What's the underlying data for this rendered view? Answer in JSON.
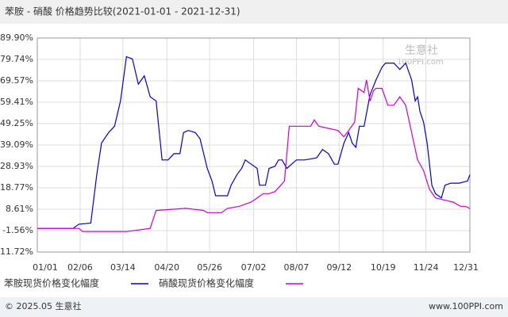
{
  "chart_data": {
    "type": "line",
    "title": "苯胺 - 硝酸 价格趋势比较(2021-01-01 - 2021-12-31)",
    "watermark": "生意社",
    "watermark_sub": "100PPI.com",
    "footer_left": "© 2025.05 生意社",
    "footer_right": "www.100PPI.com",
    "xlim": [
      0,
      364
    ],
    "xticks": [
      {
        "value": 0,
        "label": "01/01"
      },
      {
        "value": 36,
        "label": "02/06"
      },
      {
        "value": 72,
        "label": "03/14"
      },
      {
        "value": 109,
        "label": "04/20"
      },
      {
        "value": 145,
        "label": "05/26"
      },
      {
        "value": 182,
        "label": "07/02"
      },
      {
        "value": 218,
        "label": "08/07"
      },
      {
        "value": 254,
        "label": "09/12"
      },
      {
        "value": 291,
        "label": "10/19"
      },
      {
        "value": 327,
        "label": "11/24"
      },
      {
        "value": 364,
        "label": "12/31"
      }
    ],
    "ylim": [
      -11.72,
      89.9
    ],
    "yticks": [
      {
        "value": 89.9,
        "label": "89.90%"
      },
      {
        "value": 79.74,
        "label": "79.74%"
      },
      {
        "value": 69.57,
        "label": "69.57%"
      },
      {
        "value": 59.41,
        "label": "59.41%"
      },
      {
        "value": 49.25,
        "label": "49.25%"
      },
      {
        "value": 39.09,
        "label": "39.09%"
      },
      {
        "value": 28.93,
        "label": "28.93%"
      },
      {
        "value": 18.77,
        "label": "18.77%"
      },
      {
        "value": 8.61,
        "label": "8.61%"
      },
      {
        "value": -1.56,
        "label": "-1.56%"
      },
      {
        "value": -11.72,
        "label": "-11.72%"
      }
    ],
    "grid": true,
    "series": [
      {
        "name": "苯胺现货价格变化幅度",
        "color": "#0000cc",
        "x": [
          0,
          30,
          35,
          45,
          50,
          54,
          60,
          65,
          70,
          75,
          80,
          85,
          90,
          95,
          100,
          105,
          110,
          115,
          120,
          123,
          127,
          133,
          137,
          140,
          143,
          147,
          150,
          155,
          160,
          163,
          168,
          172,
          175,
          180,
          185,
          187,
          192,
          195,
          200,
          203,
          206,
          210,
          218,
          225,
          235,
          240,
          245,
          250,
          253,
          258,
          262,
          265,
          268,
          271,
          275,
          280,
          285,
          290,
          293,
          300,
          305,
          310,
          315,
          318,
          320,
          322,
          325,
          328,
          332,
          335,
          340,
          343,
          348,
          355,
          362,
          364
        ],
        "values": [
          -0.5,
          -0.5,
          1.5,
          2,
          25,
          40,
          45,
          48,
          60,
          81,
          80,
          68,
          72,
          62,
          60,
          32,
          32,
          35,
          35,
          45,
          46,
          45,
          42,
          35,
          28,
          22,
          15,
          15,
          15,
          20,
          25,
          28,
          32,
          30,
          28,
          20,
          20,
          28,
          29,
          32,
          32,
          28,
          32,
          32,
          33,
          37,
          35,
          30,
          30,
          40,
          45,
          40,
          38,
          48,
          48,
          63,
          70,
          76,
          78,
          78,
          75,
          78,
          70,
          60,
          62,
          55,
          50,
          40,
          20,
          16,
          14,
          20,
          21,
          21,
          22,
          25
        ]
      },
      {
        "name": "硝酸现货价格变化幅度",
        "color": "#cc00cc",
        "x": [
          0,
          35,
          38,
          75,
          95,
          100,
          125,
          140,
          143,
          155,
          160,
          170,
          180,
          185,
          190,
          195,
          200,
          205,
          208,
          212,
          230,
          233,
          237,
          245,
          253,
          258,
          262,
          267,
          270,
          275,
          277,
          280,
          283,
          285,
          290,
          295,
          300,
          305,
          310,
          315,
          320,
          325,
          330,
          335,
          342,
          350,
          356,
          360,
          364
        ],
        "values": [
          -0.5,
          -0.5,
          -2,
          -2,
          -0.5,
          8,
          9,
          8,
          7,
          7,
          9,
          10,
          12,
          14,
          16,
          16,
          17,
          20,
          22,
          48,
          48,
          51,
          48,
          47,
          46,
          43,
          46,
          50,
          66,
          64,
          70,
          60,
          65,
          66,
          66,
          58,
          58,
          62,
          58,
          45,
          32,
          27,
          18,
          14,
          13,
          12,
          10,
          10,
          9
        ]
      }
    ]
  }
}
